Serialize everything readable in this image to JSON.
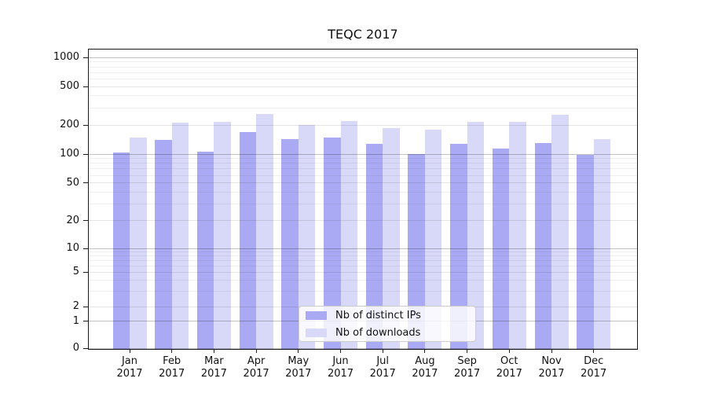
{
  "chart_data": {
    "type": "bar",
    "title": "TEQC 2017",
    "categories": [
      "Jan",
      "Feb",
      "Mar",
      "Apr",
      "May",
      "Jun",
      "Jul",
      "Aug",
      "Sep",
      "Oct",
      "Nov",
      "Dec"
    ],
    "category_year": "2017",
    "series": [
      {
        "name": "Nb of distinct IPs",
        "color": "#aaaaf4",
        "values": [
          103,
          140,
          106,
          170,
          142,
          149,
          127,
          100,
          127,
          113,
          130,
          99
        ]
      },
      {
        "name": "Nb of downloads",
        "color": "#d8d8f8",
        "values": [
          148,
          212,
          215,
          260,
          200,
          219,
          185,
          180,
          215,
          216,
          256,
          142
        ]
      }
    ],
    "yscale": "symlog",
    "ylim": [
      0,
      1000
    ],
    "yticks": [
      0,
      1,
      2,
      5,
      10,
      20,
      50,
      100,
      200,
      500,
      1000
    ],
    "grid": true,
    "legend_position": "lower center"
  }
}
